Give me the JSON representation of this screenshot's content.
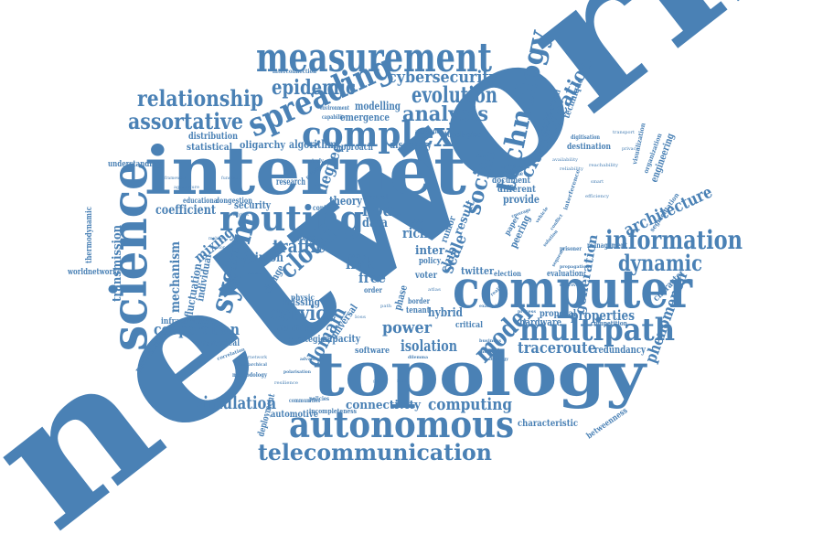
{
  "word_color": "#4a81b5",
  "background": "#ffffff",
  "words": {
    "network": "network",
    "internet": "internet",
    "topology": "topology",
    "computer": "computer",
    "measurement": "measurement",
    "autonomous": "autonomous",
    "science": "science",
    "routing": "routing",
    "spreading": "spreading",
    "complex": "complex",
    "technology": "technology",
    "multipath": "multipath",
    "system": "system",
    "telecommunication": "telecommunication",
    "information": "information",
    "social": "social",
    "classification": "classification",
    "dynamic": "dynamic",
    "relationship": "relationship",
    "assortative": "assortative",
    "epidemic": "epidemic",
    "evolution": "evolution",
    "analysis": "analysis",
    "cybersecurity": "cybersecurity",
    "model": "model",
    "cloud": "cloud",
    "traffic": "traffic",
    "node": "node",
    "architecture": "architecture",
    "service": "service",
    "cooperation": "cooperation",
    "simulation": "simulation",
    "computing": "computing",
    "traceroute": "traceroute",
    "power": "power",
    "isolation": "isolation",
    "connectivity": "connectivity",
    "link": "link",
    "free": "free",
    "scale": "scale",
    "domain": "domain",
    "degree": "degree",
    "properties": "properties",
    "generation": "generation",
    "phenomenon": "phenomenon",
    "coefficient": "coefficient",
    "mechanism": "mechanism",
    "mixing": "mixing",
    "transmission": "transmission",
    "modelling": "modelling",
    "emergence": "emergence",
    "algorithm": "algorithm",
    "oligarchy": "oligarchy",
    "statistical": "statistical",
    "distribution": "distribution",
    "approach": "approach",
    "discovery": "discovery",
    "topologies": "topologies",
    "theory": "theory",
    "security": "security",
    "research": "research",
    "rich": "rich",
    "data": "data",
    "inter": "inter",
    "club": "club",
    "twitter": "twitter",
    "hybrid": "hybrid",
    "hardware": "hardware",
    "proposal": "proposal",
    "redundancy": "redundancy",
    "characteristic": "characteristic",
    "automotive": "automotive",
    "number": "number",
    "capacity": "capacity",
    "infrastructure": "infrastructure",
    "numerical": "numerical",
    "strategies": "strategies",
    "software": "software",
    "fluctuation": "fluctuation",
    "individual": "individual",
    "structure": "structure",
    "opinion": "opinion",
    "change": "change",
    "missing": "missing",
    "physic": "physic",
    "universal": "universal",
    "provide": "provide",
    "different": "different",
    "document": "document",
    "peering": "peering",
    "engineering": "engineering",
    "technique": "technique",
    "multilateral": "multilateral",
    "destination": "destination",
    "understanding": "understanding",
    "educational": "educational",
    "congestion": "congestion",
    "thermodynamic": "thermodynamic",
    "worldnetworks": "worldnetworks",
    "performance": "performance",
    "deployment": "deployment",
    "methodology": "methodology",
    "incompleteness": "incompleteness",
    "communities": "communities",
    "betweenness": "betweenness",
    "character": "character",
    "management": "management",
    "evaluation": "evaluation",
    "election": "election",
    "critical": "critical",
    "phase": "phase",
    "tenant": "tenant",
    "border": "border",
    "voter": "voter",
    "level": "level",
    "policy": "policy",
    "rumor": "rumor",
    "result": "result",
    "segmentation": "segmentation",
    "organization": "organization",
    "visualization": "visualization",
    "digitisation": "digitisation",
    "metadata": "metadata",
    "invisible": "invisible",
    "interference": "interference",
    "paper": "paper",
    "competition": "competition",
    "control": "control",
    "content": "content",
    "many": "many",
    "order": "order",
    "policies": "policies",
    "correlation": "correlation",
    "interconnection": "interconnection",
    "environment": "environment",
    "capability": "capability",
    "automation": "automation",
    "growth": "growth",
    "study": "study",
    "pattern": "pattern",
    "hierarchical": "hierarchical",
    "polarisation": "polarisation",
    "advantage": "advantage",
    "business": "business",
    "introduce": "introduce",
    "strategy": "strategy",
    "example": "example",
    "process": "process",
    "dilemma": "dilemma",
    "sequence": "sequence",
    "prisoner": "prisoner",
    "coverage": "coverage",
    "vehicle": "vehicle",
    "conflict": "conflict",
    "solution": "solution",
    "improving": "improving",
    "propagation": "propagation",
    "reality": "reality",
    "framework": "framework",
    "function": "function",
    "agriculture": "agriculture",
    "mobile": "mobile",
    "sensor": "sensor",
    "measure": "measure",
    "atlas": "atlas",
    "path": "path",
    "loss": "loss",
    "game": "game",
    "flow": "flow",
    "view": "view",
    "reachability": "reachability",
    "smart": "smart",
    "efficiency": "efficiency",
    "availability": "availability",
    "reliability": "reliability",
    "transport": "transport",
    "privacy": "privacy",
    "analytics": "analytics",
    "internetwork": "internetwork",
    "resilience": "resilience"
  }
}
